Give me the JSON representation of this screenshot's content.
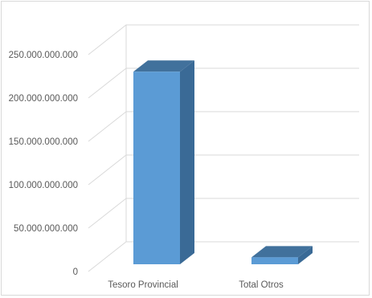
{
  "chart_data": {
    "type": "bar",
    "style": "3d-column",
    "categories": [
      "Tesoro Provincial",
      "Total Otros"
    ],
    "values": [
      222000000000,
      8000000000
    ],
    "y_ticks": [
      0,
      50000000000,
      100000000000,
      150000000000,
      200000000000,
      250000000000
    ],
    "y_tick_labels": [
      "0",
      "50.000.000.000",
      "100.000.000.000",
      "150.000.000.000",
      "200.000.000.000",
      "250.000.000.000"
    ],
    "ylim": [
      0,
      250000000000
    ],
    "grid": true,
    "legend": "none",
    "colors": {
      "bar_front": "#5b9bd5",
      "bar_top": "#41719c",
      "bar_side": "#3a6a96",
      "gridline": "#d9d9d9",
      "text": "#595959"
    }
  }
}
